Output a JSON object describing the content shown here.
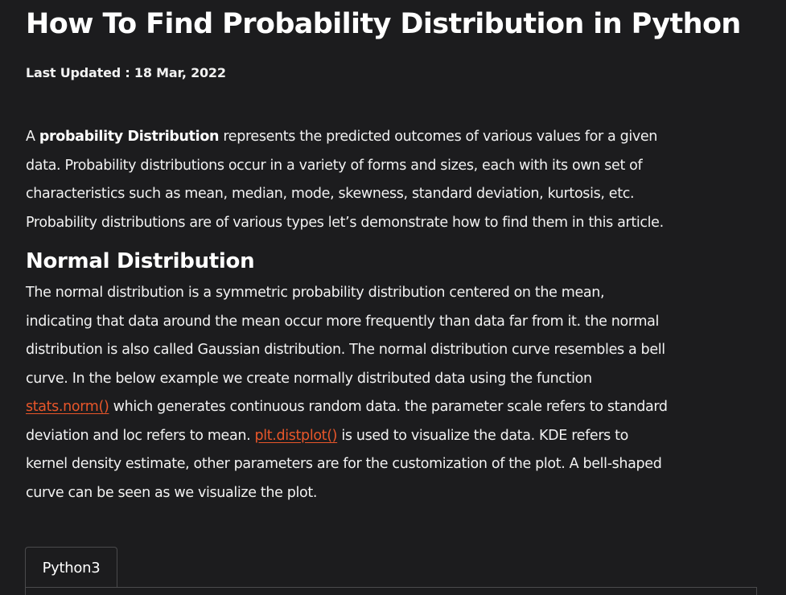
{
  "article": {
    "title": "How To Find Probability Distribution in Python",
    "last_updated": "Last Updated : 18 Mar, 2022",
    "intro": {
      "prefix": "A ",
      "bold": "probability Distribution",
      "line1_rest": " represents the predicted outcomes of various values for a given",
      "line2": "data. Probability distributions occur in a variety of forms and sizes, each with its own set of",
      "line3": "characteristics such as mean, median, mode, skewness, standard deviation, kurtosis, etc.",
      "line4": "Probability distributions are of various types let’s demonstrate how to find them in this article."
    },
    "section_heading": "Normal Distribution",
    "normal": {
      "line1": "The normal distribution is a symmetric probability distribution centered on the mean,",
      "line2": "indicating that data around the mean occur more frequently than data far from it. the normal",
      "line3": "distribution is also called Gaussian distribution. The normal distribution curve resembles a bell",
      "line4": "curve. In the below example we create normally distributed data using the function",
      "link1": "stats.norm()",
      "line5_rest": " which generates continuous random data. the parameter scale refers to standard",
      "line6_prefix": "deviation and loc refers to mean. ",
      "link2": "plt.distplot()",
      "line6_rest": " is used to visualize the data. KDE refers to",
      "line7": "kernel density estimate, other parameters are for the customization of the plot. A bell-shaped",
      "line8": "curve can be seen as we visualize the plot."
    },
    "code_tab": "Python3",
    "colors": {
      "background": "#1c1c1e",
      "text": "#ffffff",
      "link": "#e8562a",
      "border": "#4a4a4c"
    }
  }
}
